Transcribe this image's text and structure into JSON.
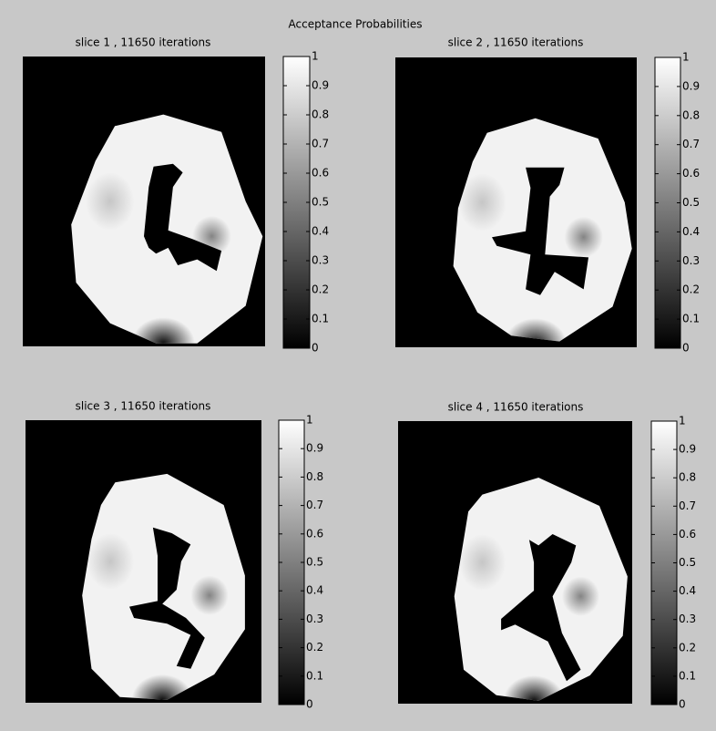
{
  "title": "Acceptance Probabilities",
  "chart_data": [
    {
      "type": "image",
      "title": "slice 1 , 11650 iterations",
      "colormap": "gray",
      "clim": [
        0,
        1
      ],
      "cticks": [
        0,
        0.1,
        0.2,
        0.3,
        0.4,
        0.5,
        0.6,
        0.7,
        0.8,
        0.9,
        1
      ]
    },
    {
      "type": "image",
      "title": "slice 2 , 11650 iterations",
      "colormap": "gray",
      "clim": [
        0,
        1
      ],
      "cticks": [
        0,
        0.1,
        0.2,
        0.3,
        0.4,
        0.5,
        0.6,
        0.7,
        0.8,
        0.9,
        1
      ]
    },
    {
      "type": "image",
      "title": "slice 3 , 11650 iterations",
      "colormap": "gray",
      "clim": [
        0,
        1
      ],
      "cticks": [
        0,
        0.1,
        0.2,
        0.3,
        0.4,
        0.5,
        0.6,
        0.7,
        0.8,
        0.9,
        1
      ]
    },
    {
      "type": "image",
      "title": "slice 4 , 11650 iterations",
      "colormap": "gray",
      "clim": [
        0,
        1
      ],
      "cticks": [
        0,
        0.1,
        0.2,
        0.3,
        0.4,
        0.5,
        0.6,
        0.7,
        0.8,
        0.9,
        1
      ]
    }
  ]
}
